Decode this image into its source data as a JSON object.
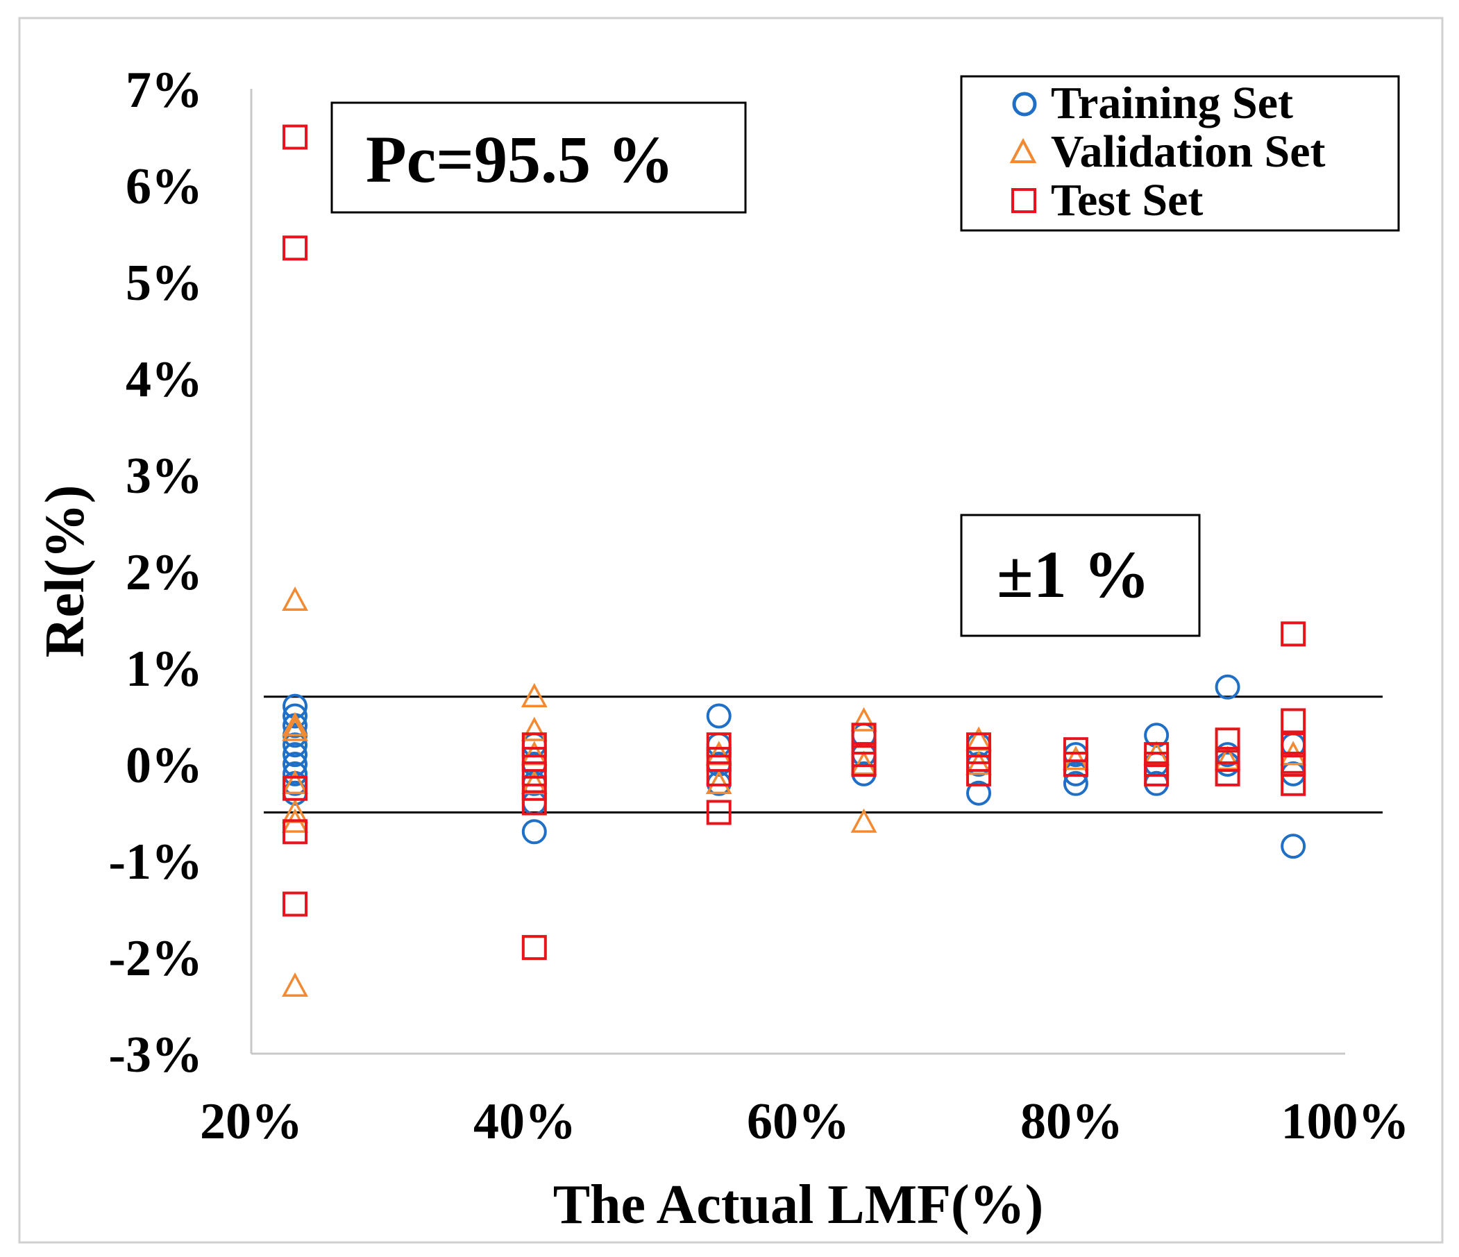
{
  "chart_data": {
    "type": "scatter",
    "title": "",
    "xlabel": "The Actual LMF(%)",
    "ylabel": "Rel(%)",
    "xlim": [
      20,
      100
    ],
    "ylim": [
      -3,
      7
    ],
    "x_ticks": [
      "20%",
      "40%",
      "60%",
      "80%",
      "100%"
    ],
    "y_ticks": [
      "-3%",
      "-2%",
      "-1%",
      "0%",
      "1%",
      "2%",
      "3%",
      "4%",
      "5%",
      "6%",
      "7%"
    ],
    "reference_lines": [
      0.7,
      -0.5
    ],
    "annotations": [
      "Pc=95.5 %",
      "±1 %"
    ],
    "legend_position": "top-right",
    "series": [
      {
        "name": "Training Set",
        "marker": "circle",
        "color": "#1f6fc6",
        "points": [
          [
            23.2,
            0.6
          ],
          [
            23.2,
            0.5
          ],
          [
            23.2,
            0.4
          ],
          [
            23.2,
            0.3
          ],
          [
            23.2,
            0.2
          ],
          [
            23.2,
            0.1
          ],
          [
            23.2,
            0.0
          ],
          [
            23.2,
            -0.1
          ],
          [
            23.2,
            -0.2
          ],
          [
            23.2,
            -0.3
          ],
          [
            40.7,
            0.2
          ],
          [
            40.7,
            0.0
          ],
          [
            40.7,
            -0.2
          ],
          [
            40.7,
            -0.4
          ],
          [
            40.7,
            -0.7
          ],
          [
            54.2,
            0.5
          ],
          [
            54.2,
            0.2
          ],
          [
            54.2,
            0.0
          ],
          [
            54.2,
            -0.2
          ],
          [
            64.8,
            0.3
          ],
          [
            64.8,
            0.1
          ],
          [
            64.8,
            -0.1
          ],
          [
            73.2,
            0.2
          ],
          [
            73.2,
            0.0
          ],
          [
            73.2,
            -0.3
          ],
          [
            80.3,
            0.1
          ],
          [
            80.3,
            -0.1
          ],
          [
            80.3,
            -0.2
          ],
          [
            86.2,
            0.3
          ],
          [
            86.2,
            0.0
          ],
          [
            86.2,
            -0.2
          ],
          [
            91.4,
            0.8
          ],
          [
            91.4,
            0.1
          ],
          [
            91.4,
            0.0
          ],
          [
            96.2,
            0.2
          ],
          [
            96.2,
            -0.1
          ],
          [
            96.2,
            -0.85
          ]
        ]
      },
      {
        "name": "Validation Set",
        "marker": "triangle",
        "color": "#f28a33",
        "points": [
          [
            23.2,
            1.7
          ],
          [
            23.2,
            0.4
          ],
          [
            23.2,
            0.35
          ],
          [
            23.2,
            -0.2
          ],
          [
            23.2,
            -0.5
          ],
          [
            23.2,
            -0.6
          ],
          [
            23.2,
            -2.3
          ],
          [
            40.7,
            0.7
          ],
          [
            40.7,
            0.35
          ],
          [
            40.7,
            0.1
          ],
          [
            40.7,
            -0.2
          ],
          [
            54.2,
            0.1
          ],
          [
            54.2,
            -0.2
          ],
          [
            64.8,
            0.45
          ],
          [
            64.8,
            0.0
          ],
          [
            64.8,
            -0.6
          ],
          [
            73.2,
            0.25
          ],
          [
            73.2,
            0.0
          ],
          [
            80.3,
            0.05
          ],
          [
            86.2,
            0.1
          ],
          [
            91.4,
            0.05
          ],
          [
            96.2,
            0.1
          ]
        ]
      },
      {
        "name": "Test Set",
        "marker": "square",
        "color": "#e8141c",
        "points": [
          [
            23.2,
            6.5
          ],
          [
            23.2,
            5.35
          ],
          [
            23.2,
            -0.25
          ],
          [
            23.2,
            -0.7
          ],
          [
            23.2,
            -1.45
          ],
          [
            40.7,
            0.2
          ],
          [
            40.7,
            0.05
          ],
          [
            40.7,
            -0.1
          ],
          [
            40.7,
            -0.25
          ],
          [
            40.7,
            -0.4
          ],
          [
            40.7,
            -1.9
          ],
          [
            54.2,
            0.2
          ],
          [
            54.2,
            0.05
          ],
          [
            54.2,
            -0.1
          ],
          [
            54.2,
            -0.5
          ],
          [
            64.8,
            0.3
          ],
          [
            64.8,
            0.1
          ],
          [
            64.8,
            0.0
          ],
          [
            73.2,
            0.2
          ],
          [
            73.2,
            0.05
          ],
          [
            73.2,
            -0.1
          ],
          [
            80.3,
            0.15
          ],
          [
            80.3,
            0.0
          ],
          [
            86.2,
            0.1
          ],
          [
            86.2,
            0.0
          ],
          [
            86.2,
            -0.1
          ],
          [
            91.4,
            0.25
          ],
          [
            91.4,
            0.05
          ],
          [
            91.4,
            -0.1
          ],
          [
            96.2,
            1.35
          ],
          [
            96.2,
            0.45
          ],
          [
            96.2,
            0.2
          ],
          [
            96.2,
            0.0
          ],
          [
            96.2,
            -0.2
          ]
        ]
      }
    ]
  }
}
